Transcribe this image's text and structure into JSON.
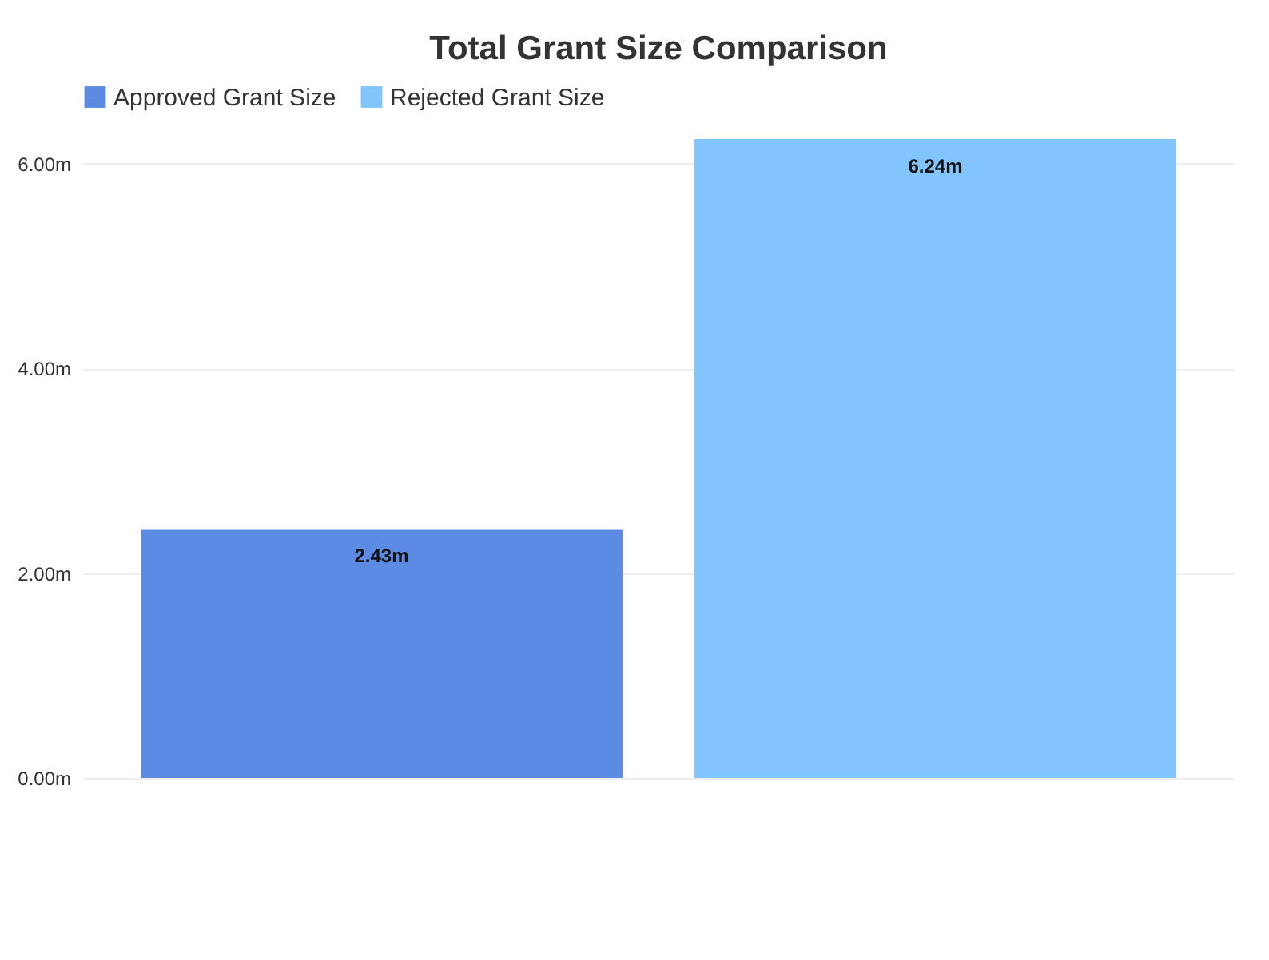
{
  "chart_data": {
    "type": "bar",
    "title": "Total Grant Size Comparison",
    "categories": [
      null
    ],
    "series": [
      {
        "name": "Approved Grant Size",
        "color": "#5b8be3",
        "values": [
          2.43
        ],
        "value_labels": [
          "2.43m"
        ]
      },
      {
        "name": "Rejected Grant Size",
        "color": "#82c4fd",
        "values": [
          6.24
        ],
        "value_labels": [
          "6.24m"
        ]
      }
    ],
    "ylim": [
      0,
      6.24
    ],
    "yticks": [
      {
        "value": 0,
        "label": "0.00m"
      },
      {
        "value": 2,
        "label": "2.00m"
      },
      {
        "value": 4,
        "label": "4.00m"
      },
      {
        "value": 6,
        "label": "6.00m"
      }
    ],
    "grid": "y",
    "legend": "top"
  }
}
